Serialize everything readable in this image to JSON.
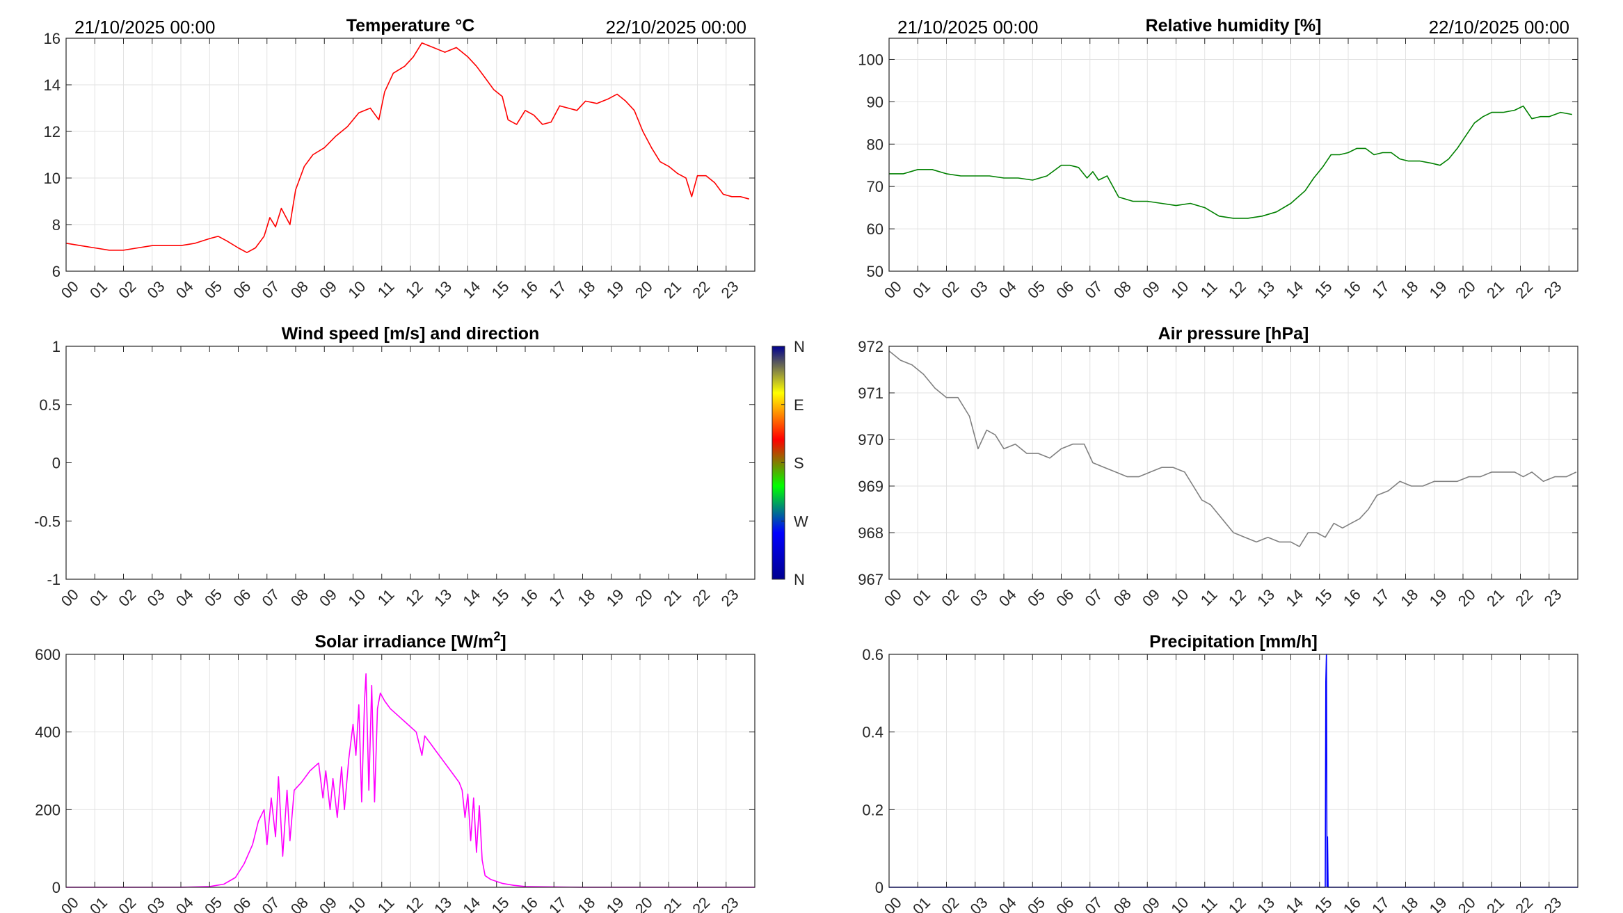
{
  "chart_data": [
    {
      "type": "line",
      "title": "Temperature °C",
      "date_start": "21/10/2025 00:00",
      "date_end": "22/10/2025 00:00",
      "xlim": [
        0,
        24
      ],
      "ylim": [
        6,
        16
      ],
      "yticks": [
        "6",
        "8",
        "10",
        "12",
        "14",
        "16"
      ],
      "xticks": [
        "00",
        "01",
        "02",
        "03",
        "04",
        "05",
        "06",
        "07",
        "08",
        "09",
        "10",
        "11",
        "12",
        "13",
        "14",
        "15",
        "16",
        "17",
        "18",
        "19",
        "20",
        "21",
        "22",
        "23"
      ],
      "color": "#ff0000",
      "grid": true,
      "series": [
        {
          "x": [
            0,
            0.5,
            1,
            1.5,
            2,
            2.5,
            3,
            3.5,
            4,
            4.5,
            5,
            5.3,
            5.6,
            6,
            6.3,
            6.6,
            6.9,
            7.1,
            7.3,
            7.5,
            7.8,
            8,
            8.3,
            8.6,
            9,
            9.4,
            9.8,
            10.2,
            10.6,
            10.9,
            11.1,
            11.4,
            11.8,
            12.1,
            12.4,
            12.8,
            13.2,
            13.6,
            14,
            14.3,
            14.6,
            14.9,
            15.2,
            15.4,
            15.7,
            16,
            16.3,
            16.6,
            16.9,
            17.2,
            17.5,
            17.8,
            18.1,
            18.5,
            18.9,
            19.2,
            19.5,
            19.8,
            20.1,
            20.4,
            20.7,
            21,
            21.3,
            21.6,
            21.8,
            22,
            22.3,
            22.6,
            22.9,
            23.2,
            23.5,
            23.8
          ],
          "y": [
            7.2,
            7.1,
            7.0,
            6.9,
            6.9,
            7.0,
            7.1,
            7.1,
            7.1,
            7.2,
            7.4,
            7.5,
            7.3,
            7.0,
            6.8,
            7.0,
            7.5,
            8.3,
            7.9,
            8.7,
            8.0,
            9.5,
            10.5,
            11.0,
            11.3,
            11.8,
            12.2,
            12.8,
            13.0,
            12.5,
            13.7,
            14.5,
            14.8,
            15.2,
            15.8,
            15.6,
            15.4,
            15.6,
            15.2,
            14.8,
            14.3,
            13.8,
            13.5,
            12.5,
            12.3,
            12.9,
            12.7,
            12.3,
            12.4,
            13.1,
            13.0,
            12.9,
            13.3,
            13.2,
            13.4,
            13.6,
            13.3,
            12.9,
            12.0,
            11.3,
            10.7,
            10.5,
            10.2,
            10.0,
            9.2,
            10.1,
            10.1,
            9.8,
            9.3,
            9.2,
            9.2,
            9.1
          ]
        }
      ]
    },
    {
      "type": "line",
      "title": "Relative humidity [%]",
      "date_start": "21/10/2025 00:00",
      "date_end": "22/10/2025 00:00",
      "xlim": [
        0,
        24
      ],
      "ylim": [
        50,
        105
      ],
      "yticks": [
        "50",
        "60",
        "70",
        "80",
        "90",
        "100"
      ],
      "xticks": [
        "00",
        "01",
        "02",
        "03",
        "04",
        "05",
        "06",
        "07",
        "08",
        "09",
        "10",
        "11",
        "12",
        "13",
        "14",
        "15",
        "16",
        "17",
        "18",
        "19",
        "20",
        "21",
        "22",
        "23"
      ],
      "color": "#008000",
      "grid": true,
      "series": [
        {
          "x": [
            0,
            0.5,
            1,
            1.5,
            2,
            2.5,
            3,
            3.5,
            4,
            4.5,
            5,
            5.5,
            6,
            6.3,
            6.6,
            6.9,
            7.1,
            7.3,
            7.6,
            8,
            8.5,
            9,
            9.5,
            10,
            10.5,
            11,
            11.5,
            12,
            12.5,
            13,
            13.5,
            14,
            14.5,
            14.8,
            15.1,
            15.4,
            15.7,
            16,
            16.3,
            16.6,
            16.9,
            17.2,
            17.5,
            17.8,
            18.1,
            18.5,
            18.9,
            19.2,
            19.5,
            19.8,
            20.1,
            20.4,
            20.7,
            21,
            21.4,
            21.8,
            22.1,
            22.4,
            22.7,
            23,
            23.4,
            23.8
          ],
          "y": [
            73,
            73,
            74,
            74,
            73,
            72.5,
            72.5,
            72.5,
            72,
            72,
            71.5,
            72.5,
            75,
            75,
            74.5,
            72,
            73.5,
            71.5,
            72.5,
            67.5,
            66.5,
            66.5,
            66,
            65.5,
            66,
            65,
            63,
            62.5,
            62.5,
            63,
            64,
            66,
            69,
            72,
            74.5,
            77.5,
            77.5,
            78,
            79,
            79,
            77.5,
            78,
            78,
            76.5,
            76,
            76,
            75.5,
            75,
            76.5,
            79,
            82,
            85,
            86.5,
            87.5,
            87.5,
            88,
            89,
            86,
            86.5,
            86.5,
            87.5,
            87
          ]
        }
      ]
    },
    {
      "type": "line",
      "title": "Wind speed [m/s] and direction",
      "xlim": [
        0,
        24
      ],
      "ylim": [
        -1,
        1
      ],
      "yticks": [
        "-1",
        "-0.5",
        "0",
        "0.5",
        "1"
      ],
      "xticks": [
        "00",
        "01",
        "02",
        "03",
        "04",
        "05",
        "06",
        "07",
        "08",
        "09",
        "10",
        "11",
        "12",
        "13",
        "14",
        "15",
        "16",
        "17",
        "18",
        "19",
        "20",
        "21",
        "22",
        "23"
      ],
      "grid": false,
      "colorbar": {
        "labels": [
          "N",
          "W",
          "S",
          "E",
          "N"
        ],
        "colors": [
          "#00008f",
          "#0000ff",
          "#00ff00",
          "#ff0000",
          "#ffff00",
          "#00008f"
        ]
      },
      "series": []
    },
    {
      "type": "line",
      "title": "Air pressure [hPa]",
      "xlim": [
        0,
        24
      ],
      "ylim": [
        967,
        972
      ],
      "yticks": [
        "967",
        "968",
        "969",
        "970",
        "971",
        "972"
      ],
      "xticks": [
        "00",
        "01",
        "02",
        "03",
        "04",
        "05",
        "06",
        "07",
        "08",
        "09",
        "10",
        "11",
        "12",
        "13",
        "14",
        "15",
        "16",
        "17",
        "18",
        "19",
        "20",
        "21",
        "22",
        "23"
      ],
      "color": "#808080",
      "grid": true,
      "series": [
        {
          "x": [
            0,
            0.4,
            0.8,
            1.2,
            1.6,
            2,
            2.4,
            2.8,
            3.1,
            3.4,
            3.7,
            4,
            4.4,
            4.8,
            5.2,
            5.6,
            6,
            6.4,
            6.8,
            7.1,
            7.5,
            7.9,
            8.3,
            8.7,
            9.1,
            9.5,
            9.9,
            10.3,
            10.6,
            10.9,
            11.2,
            11.6,
            12,
            12.4,
            12.8,
            13.2,
            13.6,
            14,
            14.3,
            14.6,
            14.9,
            15.2,
            15.5,
            15.8,
            16.1,
            16.4,
            16.7,
            17,
            17.4,
            17.8,
            18.2,
            18.6,
            19,
            19.4,
            19.8,
            20.2,
            20.6,
            21,
            21.4,
            21.8,
            22.1,
            22.4,
            22.8,
            23.2,
            23.6,
            23.95
          ],
          "y": [
            971.9,
            971.7,
            971.6,
            971.4,
            971.1,
            970.9,
            970.9,
            970.5,
            969.8,
            970.2,
            970.1,
            969.8,
            969.9,
            969.7,
            969.7,
            969.6,
            969.8,
            969.9,
            969.9,
            969.5,
            969.4,
            969.3,
            969.2,
            969.2,
            969.3,
            969.4,
            969.4,
            969.3,
            969.0,
            968.7,
            968.6,
            968.3,
            968.0,
            967.9,
            967.8,
            967.9,
            967.8,
            967.8,
            967.7,
            968.0,
            968.0,
            967.9,
            968.2,
            968.1,
            968.2,
            968.3,
            968.5,
            968.8,
            968.9,
            969.1,
            969.0,
            969.0,
            969.1,
            969.1,
            969.1,
            969.2,
            969.2,
            969.3,
            969.3,
            969.3,
            969.2,
            969.3,
            969.1,
            969.2,
            969.2,
            969.3
          ]
        }
      ]
    },
    {
      "type": "line",
      "title": "Solar irradiance [W/m",
      "title_superscript": "2",
      "title_suffix": "]",
      "xlim": [
        0,
        24
      ],
      "ylim": [
        0,
        600
      ],
      "yticks": [
        "0",
        "200",
        "400",
        "600"
      ],
      "xticks": [
        "00",
        "01",
        "02",
        "03",
        "04",
        "05",
        "06",
        "07",
        "08",
        "09",
        "10",
        "11",
        "12",
        "13",
        "14",
        "15",
        "16",
        "17",
        "18",
        "19",
        "20",
        "21",
        "22",
        "23"
      ],
      "color": "#ff00ff",
      "grid": true,
      "series": [
        {
          "x": [
            0,
            4,
            5,
            5.5,
            5.9,
            6.2,
            6.5,
            6.7,
            6.9,
            7,
            7.15,
            7.3,
            7.4,
            7.55,
            7.7,
            7.8,
            7.95,
            8.2,
            8.5,
            8.8,
            8.95,
            9.05,
            9.2,
            9.3,
            9.45,
            9.6,
            9.7,
            9.85,
            10,
            10.1,
            10.2,
            10.3,
            10.4,
            10.45,
            10.55,
            10.65,
            10.75,
            10.85,
            10.95,
            11.1,
            11.3,
            11.6,
            11.9,
            12.2,
            12.4,
            12.5,
            12.7,
            12.9,
            13.1,
            13.3,
            13.5,
            13.7,
            13.8,
            13.9,
            14,
            14.1,
            14.2,
            14.3,
            14.4,
            14.5,
            14.6,
            14.8,
            15,
            15.2,
            15.6,
            16,
            18,
            24
          ],
          "y": [
            0,
            0,
            2,
            8,
            25,
            60,
            110,
            170,
            200,
            110,
            230,
            130,
            285,
            80,
            250,
            120,
            250,
            270,
            300,
            320,
            230,
            300,
            200,
            280,
            180,
            310,
            200,
            330,
            420,
            340,
            470,
            220,
            480,
            550,
            250,
            520,
            220,
            460,
            500,
            480,
            460,
            440,
            420,
            400,
            340,
            390,
            370,
            350,
            330,
            310,
            290,
            270,
            250,
            180,
            240,
            120,
            230,
            90,
            210,
            70,
            30,
            20,
            15,
            10,
            5,
            2,
            0,
            0
          ]
        }
      ]
    },
    {
      "type": "line",
      "title": "Precipitation [mm/h]",
      "xlim": [
        0,
        24
      ],
      "ylim": [
        0,
        0.6
      ],
      "yticks": [
        "0",
        "0.2",
        "0.4",
        "0.6"
      ],
      "xticks": [
        "00",
        "01",
        "02",
        "03",
        "04",
        "05",
        "06",
        "07",
        "08",
        "09",
        "10",
        "11",
        "12",
        "13",
        "14",
        "15",
        "16",
        "17",
        "18",
        "19",
        "20",
        "21",
        "22",
        "23"
      ],
      "color": "#0000ff",
      "grid": true,
      "series": [
        {
          "x": [
            0,
            15.2,
            15.22,
            15.24,
            15.26,
            15.28,
            15.3,
            15.32,
            24
          ],
          "y": [
            0,
            0,
            0.53,
            0.6,
            0,
            0.13,
            0,
            0,
            0
          ]
        }
      ]
    }
  ]
}
